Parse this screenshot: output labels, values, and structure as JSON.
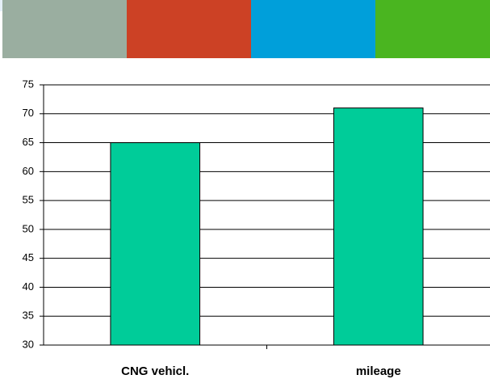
{
  "chart_data": {
    "type": "bar",
    "categories": [
      "CNG vehicl.",
      "mileage"
    ],
    "values": [
      65,
      71
    ],
    "color": "#00cc99",
    "ylim": [
      30,
      75
    ],
    "yticks": [
      30,
      35,
      40,
      45,
      50,
      55,
      60,
      65,
      70,
      75
    ],
    "grid": true
  }
}
